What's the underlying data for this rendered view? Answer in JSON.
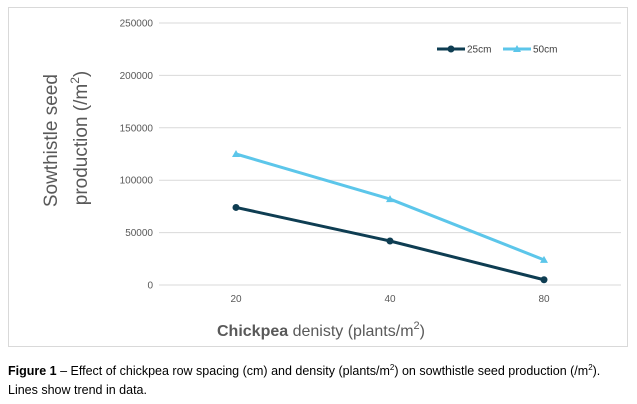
{
  "chart_data": {
    "type": "line",
    "categories": [
      "20",
      "40",
      "80"
    ],
    "series": [
      {
        "name": "25cm",
        "values": [
          74000,
          42000,
          5000
        ],
        "color": "#0e3d52",
        "marker": "circle"
      },
      {
        "name": "50cm",
        "values": [
          125000,
          82000,
          24000
        ],
        "color": "#5cc6ea",
        "marker": "triangle"
      }
    ],
    "yticks": [
      "0",
      "50000",
      "100000",
      "150000",
      "200000",
      "250000"
    ],
    "ylim": [
      0,
      250000
    ],
    "ylabel_line1": "Sowthistle seed",
    "ylabel_line2_pre": "production (/m",
    "ylabel_sup": "2",
    "ylabel_line2_post": ")",
    "xlabel_bold": "Chickpea",
    "xlabel_rest": " denisty (plants/m",
    "xlabel_sup": "2",
    "xlabel_post": ")",
    "grid": "horizontal",
    "legend_position": "top-right"
  },
  "caption": {
    "label": "Figure 1",
    "text_part1": " – Effect of chickpea row spacing (cm) and density (plants/m",
    "sup1": "2",
    "text_part2": ") on sowthistle seed production (/m",
    "sup2": "2",
    "text_part3": "). Lines show trend in data."
  }
}
